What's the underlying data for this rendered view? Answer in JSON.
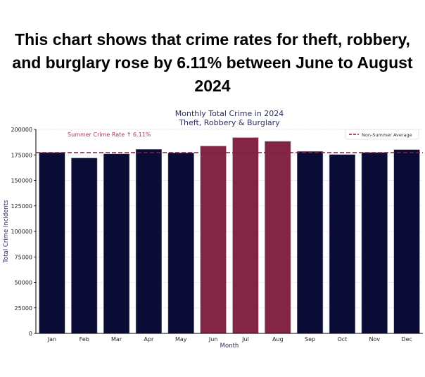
{
  "headline": "This chart shows that crime rates for theft, robbery, and burglary rose by 6.11% between June to August 2024",
  "chart_data": {
    "type": "bar",
    "title": "Monthly Total Crime in 2024",
    "subtitle": "Theft, Robbery & Burglary",
    "xlabel": "Month",
    "ylabel": "Total Crime Incidents",
    "ylim": [
      0,
      200000
    ],
    "yticks": [
      0,
      25000,
      50000,
      75000,
      100000,
      125000,
      150000,
      175000,
      200000
    ],
    "categories": [
      "Jan",
      "Feb",
      "Mar",
      "Apr",
      "May",
      "Jun",
      "Jul",
      "Aug",
      "Sep",
      "Oct",
      "Nov",
      "Dec"
    ],
    "values": [
      177400,
      172000,
      176000,
      180500,
      177000,
      183700,
      192000,
      188300,
      178400,
      175400,
      177400,
      180200
    ],
    "highlighted": [
      "Jun",
      "Jul",
      "Aug"
    ],
    "colors": {
      "normal": "#0a0c35",
      "summer": "#832645",
      "avg_line": "#8b1a3c",
      "annotation": "#b0305a",
      "title": "#2b2d5c"
    },
    "reference_line": {
      "label": "Non-Summer Average",
      "value": 177200
    },
    "annotation": "Summer Crime Rate ↑ 6.11%",
    "grid": true,
    "legend": "top-right"
  }
}
